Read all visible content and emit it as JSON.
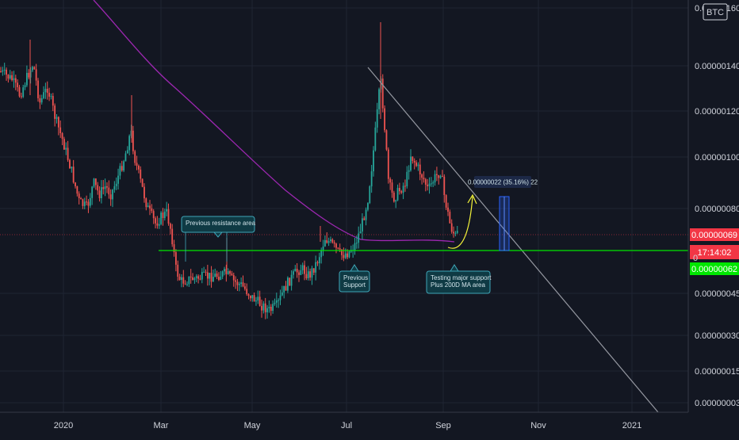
{
  "symbol_badge": "BTC",
  "chart_data": {
    "type": "candlestick",
    "x_axis": {
      "ticks": [
        "2020",
        "Mar",
        "May",
        "Jul",
        "Sep",
        "Nov",
        "2021"
      ]
    },
    "y_axis": {
      "ticks": [
        "0.00000160",
        "0.00000140",
        "0.00000120",
        "0.00000100",
        "0.00000080",
        "0.00000045",
        "0.00000030",
        "0.00000015",
        "0.00000003"
      ]
    },
    "current_price": {
      "label": "0.00000069",
      "value": 6.9e-07,
      "color": "#f23645"
    },
    "countdown": {
      "label": "17:14:02",
      "color": "#f23645"
    },
    "support_price": {
      "label": "0.00000062",
      "value": 6.2e-07,
      "color": "#00e600"
    },
    "support_partial_label": "0",
    "moving_average": {
      "color": "#9c27b0"
    },
    "trendline": {
      "color": "#9598a1"
    },
    "measure_label": "0.00000022 (35.16%) 22",
    "annotations": [
      {
        "id": "previous-resistance",
        "text": [
          "Previous resistance area"
        ]
      },
      {
        "id": "previous-support",
        "text": [
          "Previous",
          "Support"
        ]
      },
      {
        "id": "testing-support",
        "text": [
          "Testing major support",
          "Plus 200D MA area"
        ]
      }
    ],
    "colors": {
      "up": "#26a69a",
      "down": "#ef5350",
      "grid": "#1f2433",
      "support_line": "#00e600",
      "projection": "#f5f53a",
      "measure_box": "#2962ff"
    }
  }
}
